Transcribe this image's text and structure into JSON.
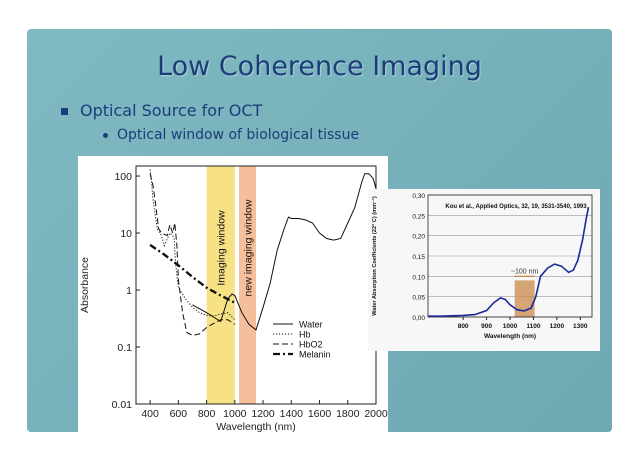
{
  "slide": {
    "title": "Low Coherence Imaging",
    "bullet_1": "Optical Source for OCT",
    "bullet_2": "Optical window of biological tissue"
  },
  "colors": {
    "title": "#1b3d7a",
    "background": "#74aeb8",
    "imaging_window": "#f5dd70",
    "new_imaging_window": "#f3b48a",
    "water_curve": "#1a2a9a",
    "highlight": "#c9894a"
  },
  "chart_data": [
    {
      "type": "line",
      "title": "",
      "xlabel": "Wavelength (nm)",
      "ylabel": "Absorbance",
      "xlim": [
        300,
        2000
      ],
      "ylim": [
        0.01,
        150
      ],
      "yscale": "log",
      "x_ticks": [
        "400",
        "600",
        "800",
        "1000",
        "1200",
        "1400",
        "1600",
        "1800",
        "2000"
      ],
      "y_ticks": [
        "0.01",
        "0.1",
        "1",
        "10",
        "100"
      ],
      "bands": [
        {
          "label": "Imaging window",
          "x": [
            800,
            1000
          ],
          "color": "#f5dd70"
        },
        {
          "label": "new imaging window",
          "x": [
            1030,
            1150
          ],
          "color": "#f3b48a"
        }
      ],
      "legend_position": "right-center",
      "series": [
        {
          "name": "Water",
          "style": "solid",
          "points": [
            [
              700,
              0.55
            ],
            [
              800,
              0.4
            ],
            [
              900,
              0.28
            ],
            [
              950,
              0.7
            ],
            [
              980,
              0.85
            ],
            [
              1000,
              0.8
            ],
            [
              1050,
              0.4
            ],
            [
              1100,
              0.25
            ],
            [
              1150,
              0.2
            ],
            [
              1200,
              0.5
            ],
            [
              1250,
              1.3
            ],
            [
              1300,
              5
            ],
            [
              1350,
              12
            ],
            [
              1380,
              19
            ],
            [
              1400,
              18
            ],
            [
              1450,
              18
            ],
            [
              1500,
              17
            ],
            [
              1550,
              15
            ],
            [
              1600,
              10
            ],
            [
              1650,
              8
            ],
            [
              1700,
              7.5
            ],
            [
              1750,
              8
            ],
            [
              1800,
              15
            ],
            [
              1850,
              28
            ],
            [
              1900,
              80
            ],
            [
              1920,
              110
            ],
            [
              1950,
              110
            ],
            [
              1980,
              90
            ],
            [
              2000,
              60
            ]
          ]
        },
        {
          "name": "Hb",
          "style": "dotted",
          "points": [
            [
              400,
              130
            ],
            [
              410,
              80
            ],
            [
              420,
              40
            ],
            [
              450,
              12
            ],
            [
              480,
              9
            ],
            [
              500,
              6
            ],
            [
              540,
              10
            ],
            [
              560,
              9
            ],
            [
              570,
              8
            ],
            [
              580,
              3
            ],
            [
              600,
              1.1
            ],
            [
              650,
              0.7
            ],
            [
              700,
              0.5
            ],
            [
              750,
              0.4
            ],
            [
              800,
              0.36
            ],
            [
              850,
              0.35
            ],
            [
              900,
              0.38
            ],
            [
              950,
              0.4
            ],
            [
              1000,
              0.3
            ]
          ]
        },
        {
          "name": "HbO2",
          "style": "dashed",
          "points": [
            [
              400,
              110
            ],
            [
              420,
              70
            ],
            [
              440,
              30
            ],
            [
              460,
              12
            ],
            [
              480,
              10
            ],
            [
              520,
              9
            ],
            [
              540,
              14
            ],
            [
              560,
              10
            ],
            [
              575,
              15
            ],
            [
              590,
              6
            ],
            [
              600,
              1.5
            ],
            [
              630,
              0.4
            ],
            [
              660,
              0.18
            ],
            [
              700,
              0.16
            ],
            [
              750,
              0.17
            ],
            [
              800,
              0.22
            ],
            [
              850,
              0.26
            ],
            [
              900,
              0.3
            ],
            [
              950,
              0.3
            ],
            [
              1000,
              0.25
            ]
          ]
        },
        {
          "name": "Melanin",
          "style": "dash-dot",
          "points": [
            [
              400,
              6.2
            ],
            [
              500,
              4.2
            ],
            [
              600,
              2.7
            ],
            [
              700,
              1.7
            ],
            [
              800,
              1.1
            ],
            [
              900,
              0.8
            ],
            [
              1000,
              0.6
            ]
          ]
        }
      ]
    },
    {
      "type": "line",
      "title": "Kou et al., Applied Optics, 32, 19, 3531-3540, 1993",
      "xlabel": "Wavelength (nm)",
      "ylabel": "Water Absorption Coefficients (22° C) (mm⁻¹)",
      "xlim": [
        650,
        1350
      ],
      "ylim": [
        0,
        0.3
      ],
      "x_ticks": [
        "800",
        "900",
        "1000",
        "1100",
        "1200",
        "1300"
      ],
      "y_ticks": [
        "0,00",
        "0,05",
        "0,10",
        "0,15",
        "0,20",
        "0,25",
        "0,30"
      ],
      "annotation": "~100 nm",
      "band": {
        "x": [
          1020,
          1105
        ],
        "color": "#c9894a"
      },
      "series": [
        {
          "name": "",
          "points": [
            [
              650,
              0.002
            ],
            [
              700,
              0.002
            ],
            [
              750,
              0.003
            ],
            [
              800,
              0.004
            ],
            [
              850,
              0.006
            ],
            [
              900,
              0.016
            ],
            [
              930,
              0.035
            ],
            [
              960,
              0.047
            ],
            [
              980,
              0.043
            ],
            [
              1000,
              0.03
            ],
            [
              1030,
              0.018
            ],
            [
              1060,
              0.015
            ],
            [
              1090,
              0.022
            ],
            [
              1110,
              0.05
            ],
            [
              1130,
              0.1
            ],
            [
              1160,
              0.12
            ],
            [
              1190,
              0.13
            ],
            [
              1220,
              0.125
            ],
            [
              1250,
              0.11
            ],
            [
              1270,
              0.115
            ],
            [
              1290,
              0.14
            ],
            [
              1310,
              0.19
            ],
            [
              1325,
              0.24
            ],
            [
              1335,
              0.27
            ]
          ]
        }
      ]
    }
  ]
}
